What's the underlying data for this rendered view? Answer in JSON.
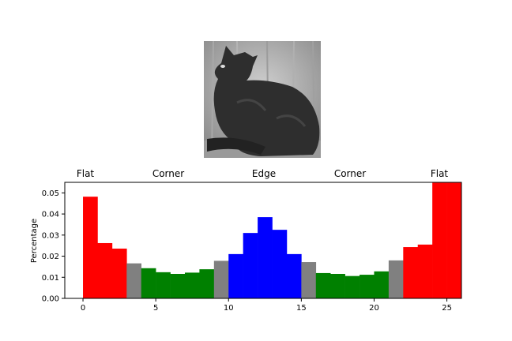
{
  "photo": {
    "alt": "grayscale photo of a dark cat sitting in front of a wooden wall"
  },
  "regions": [
    "Flat",
    "Corner",
    "Edge",
    "Corner",
    "Flat"
  ],
  "colors": {
    "flat": "#ff0000",
    "transition": "#808080",
    "corner": "#008000",
    "edge": "#0000ff"
  },
  "chart_data": {
    "type": "bar",
    "x": [
      0,
      1,
      2,
      3,
      4,
      5,
      6,
      7,
      8,
      9,
      10,
      11,
      12,
      13,
      14,
      15,
      16,
      17,
      18,
      19,
      20,
      21,
      22,
      23,
      24,
      25
    ],
    "values": [
      0.0482,
      0.0262,
      0.0236,
      0.0166,
      0.0143,
      0.0124,
      0.0116,
      0.0122,
      0.0138,
      0.0178,
      0.021,
      0.031,
      0.0385,
      0.0325,
      0.021,
      0.0172,
      0.012,
      0.0116,
      0.0106,
      0.0112,
      0.0128,
      0.018,
      0.0243,
      0.0255,
      0.0548,
      0.0548
    ],
    "bar_colors": [
      "red",
      "red",
      "red",
      "gray",
      "green",
      "green",
      "green",
      "green",
      "green",
      "gray",
      "blue",
      "blue",
      "blue",
      "blue",
      "blue",
      "gray",
      "green",
      "green",
      "green",
      "green",
      "green",
      "gray",
      "red",
      "red",
      "red",
      "red"
    ],
    "ylabel": "Percentage",
    "xlim": [
      -1.25,
      26
    ],
    "ylim": [
      0,
      0.055
    ],
    "xticks": [
      0,
      5,
      10,
      15,
      20,
      25
    ],
    "xtick_labels": [
      "0",
      "5",
      "10",
      "15",
      "20",
      "25"
    ],
    "yticks": [
      0,
      0.01,
      0.02,
      0.03,
      0.04,
      0.05
    ],
    "ytick_labels": [
      "0.00",
      "0.01",
      "0.02",
      "0.03",
      "0.04",
      "0.05"
    ]
  }
}
